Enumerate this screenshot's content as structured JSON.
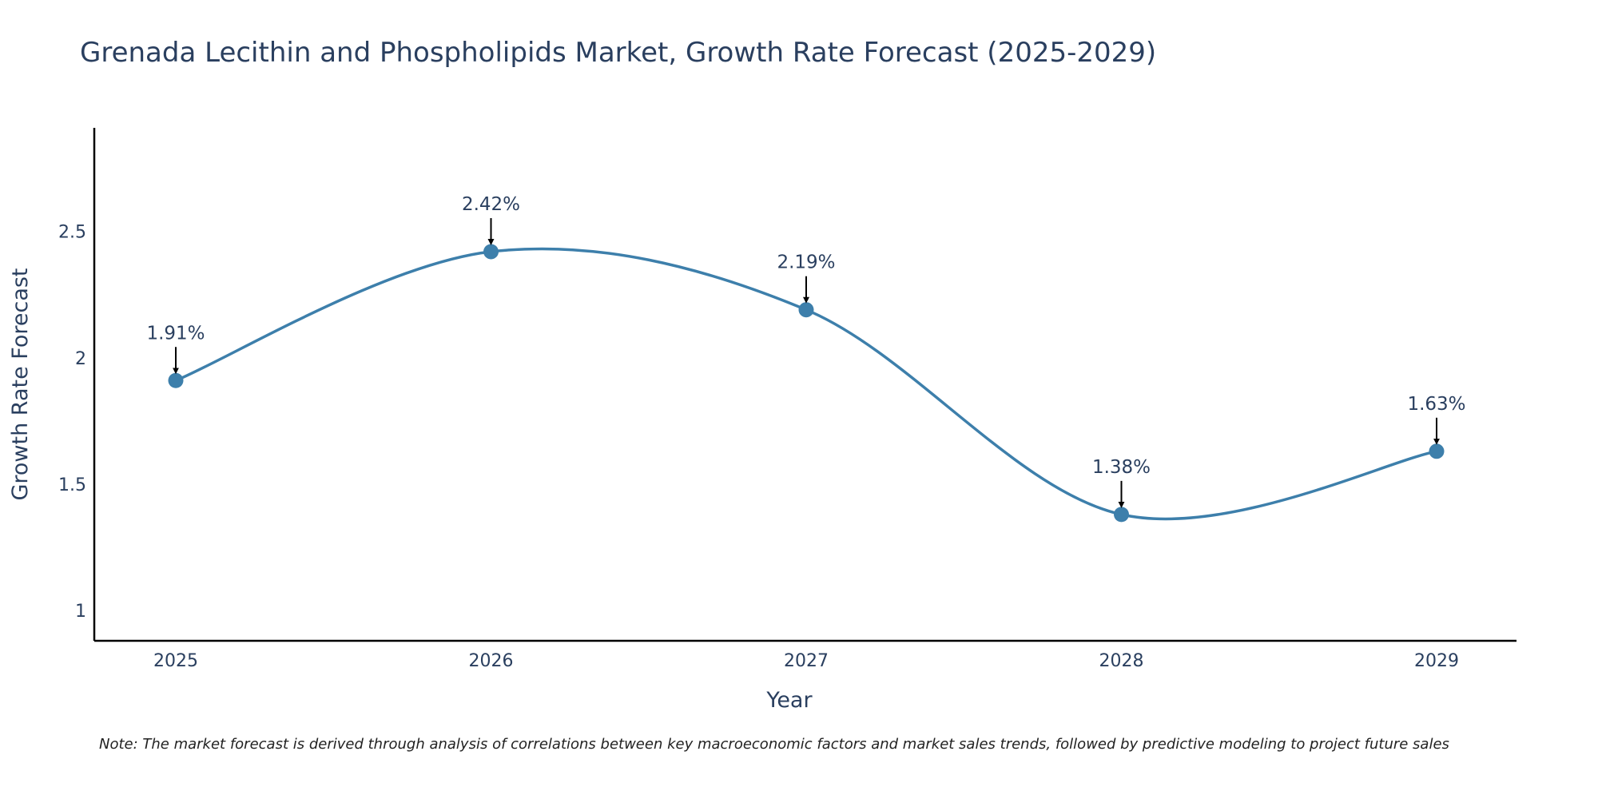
{
  "chart_data": {
    "type": "line",
    "title": "Grenada Lecithin and Phospholipids Market, Growth Rate Forecast (2025-2029)",
    "xlabel": "Year",
    "ylabel": "Growth Rate Forecast",
    "categories": [
      "2025",
      "2026",
      "2027",
      "2028",
      "2029"
    ],
    "series": [
      {
        "name": "Growth Rate Forecast",
        "values": [
          1.91,
          2.42,
          2.19,
          1.38,
          1.63
        ],
        "labels": [
          "1.91%",
          "2.42%",
          "2.19%",
          "1.38%",
          "1.63%"
        ]
      }
    ],
    "ylim": [
      0.88,
      2.91
    ],
    "yticks": [
      1,
      1.5,
      2,
      2.5
    ],
    "ytick_labels": [
      "1",
      "1.5",
      "2",
      "2.5"
    ],
    "grid": false,
    "line_shape": "spline"
  },
  "note": "Note: The market forecast is derived through analysis of correlations between key macroeconomic factors and market sales trends, followed by predictive modeling to project future sales",
  "colors": {
    "line": "#3d7fab",
    "marker": "#3d7fab",
    "axis": "#000000",
    "text": "#2a3f5f",
    "arrow": "#000000"
  }
}
